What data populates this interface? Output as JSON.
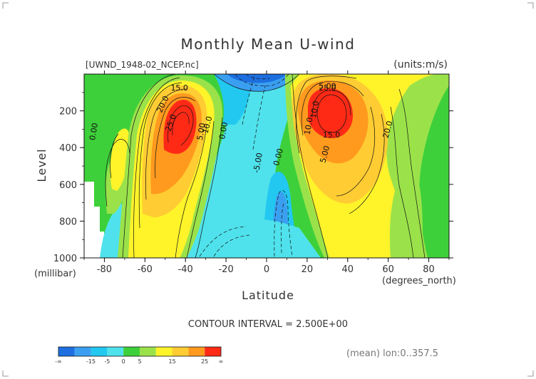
{
  "chart_data": {
    "type": "contour",
    "title": "Monthly Mean U-wind",
    "dataset_label": "[UWND_1948-02_NCEP.nc]",
    "units_label": "(units:m/s)",
    "xlabel": "Latitude",
    "xunit": "(degrees_north)",
    "ylabel": "Level",
    "yunit": "(millibar)",
    "xlim": [
      -90,
      90
    ],
    "ylim": [
      1000,
      0
    ],
    "x_ticks": [
      "-80",
      "-60",
      "-40",
      "-20",
      "0",
      "20",
      "40",
      "60",
      "80"
    ],
    "y_ticks": [
      "200",
      "400",
      "600",
      "800",
      "1000"
    ],
    "contour_interval": "CONTOUR INTERVAL = 2.500E+00",
    "footnote": "(mean) lon:0..357.5",
    "contour_labels": [
      "15.0",
      "20.0",
      "25.0",
      "10.0",
      "5.00",
      "0.00",
      "-5.00",
      "0.00",
      "5.00",
      "10.0",
      "15.0",
      "20.0",
      "25.0",
      "10.0",
      "5.00",
      "0.00"
    ],
    "colorbar": {
      "colors": [
        "#1d6fe0",
        "#3a9ff0",
        "#22c8f0",
        "#4fe2ec",
        "#3ed03a",
        "#9be24a",
        "#fff32a",
        "#ffcc33",
        "#ff9a1e",
        "#ff2a16"
      ],
      "tick_labels": [
        "-∞",
        "-15",
        "-5",
        "0",
        "5",
        "15",
        "25",
        "∞"
      ]
    }
  }
}
